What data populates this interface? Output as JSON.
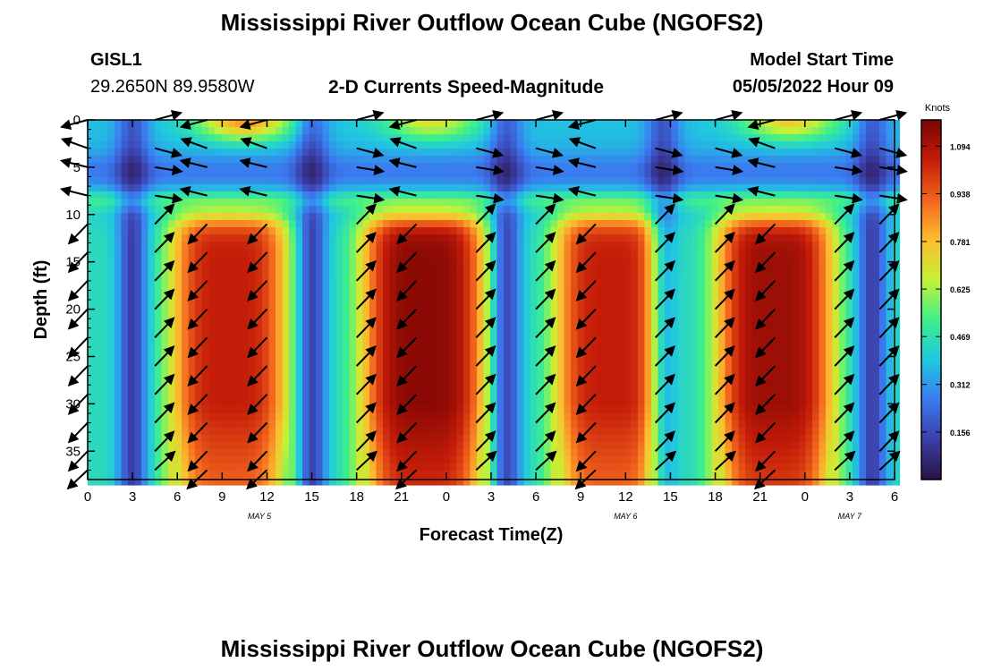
{
  "header": {
    "title": "Mississippi River Outflow Ocean Cube (NGOFS2)",
    "station": "GISL1",
    "coords": "29.2650N  89.9580W",
    "subtitle": "2-D Currents Speed-Magnitude",
    "start_label": "Model Start Time",
    "start_value": "05/05/2022 Hour 09"
  },
  "footer": {
    "title": "Mississippi River Outflow Ocean Cube (NGOFS2)"
  },
  "chart_data": {
    "type": "heatmap",
    "title": "2-D Currents Speed-Magnitude",
    "xlabel": "Forecast Time(Z)",
    "ylabel": "Depth (ft)",
    "x_ticks": [
      "0",
      "3",
      "6",
      "9",
      "12",
      "15",
      "18",
      "21",
      "0",
      "3",
      "6",
      "9",
      "12",
      "15",
      "18",
      "21",
      "0",
      "3",
      "6"
    ],
    "x_range_hours": [
      0,
      54
    ],
    "date_labels": [
      {
        "text": "MAY 5",
        "hour": 11.5
      },
      {
        "text": "MAY 6",
        "hour": 36
      },
      {
        "text": "MAY 7",
        "hour": 51
      }
    ],
    "y_ticks": [
      0,
      5,
      10,
      15,
      20,
      25,
      30,
      35
    ],
    "ylim": [
      38,
      0
    ],
    "colorbar": {
      "title": "Knots",
      "min": 0.0,
      "max": 1.18,
      "ticks": [
        "1.094",
        "0.938",
        "0.781",
        "0.625",
        "0.469",
        "0.312",
        "0.156"
      ],
      "tick_values": [
        1.094,
        0.938,
        0.781,
        0.625,
        0.469,
        0.312,
        0.156
      ],
      "colors": [
        "#2a1244",
        "#3b3ea8",
        "#3b7af0",
        "#1fc8e0",
        "#3ef08a",
        "#c4f235",
        "#fdbd2f",
        "#f2641d",
        "#c41c09",
        "#7a0403"
      ]
    },
    "deep_peaks": [
      {
        "center_hour": 9.5,
        "half_width_hours": 4.0,
        "peak_knots": 1.05
      },
      {
        "center_hour": 22.5,
        "half_width_hours": 4.2,
        "peak_knots": 1.15
      },
      {
        "center_hour": 35.0,
        "half_width_hours": 3.8,
        "peak_knots": 1.05
      },
      {
        "center_hour": 46.0,
        "half_width_hours": 4.0,
        "peak_knots": 1.12
      }
    ],
    "slack_minima_hours": [
      3.0,
      15.0,
      28.0,
      38.5,
      52.5
    ],
    "surface_peaks": [
      {
        "center_hour": 10.5,
        "peak_knots": 0.85
      },
      {
        "center_hour": 23.0,
        "peak_knots": 0.7
      },
      {
        "center_hour": 47.0,
        "peak_knots": 0.75
      }
    ],
    "vector_hours": [
      0,
      4.5,
      8,
      12,
      18,
      22,
      26,
      30,
      34,
      38,
      42,
      46,
      50,
      53
    ],
    "vector_depths_ft": [
      0,
      3,
      5,
      8,
      11,
      14,
      17,
      20,
      23,
      26,
      29,
      32,
      35,
      37
    ]
  }
}
